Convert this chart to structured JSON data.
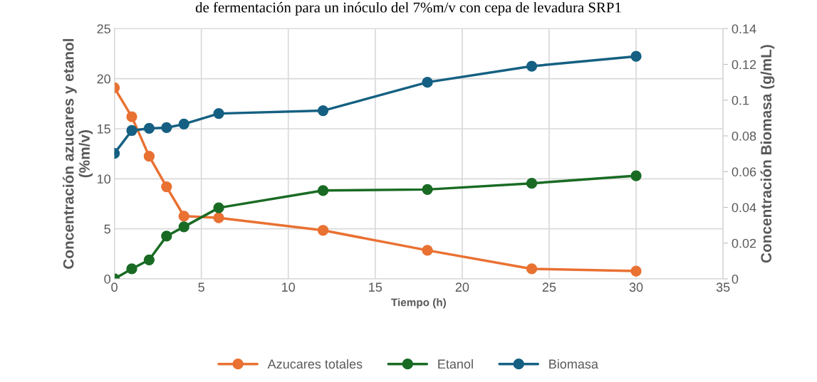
{
  "chart_data": {
    "type": "line",
    "title": "de fermentación para un inóculo del 7%m/v con cepa de levadura SRP1",
    "xlabel": "Tiempo (h)",
    "ylabel": "Concentración azucares y etanol\n(%m/v)",
    "y2label": "Concentración Biomasa (g/mL)",
    "x": [
      0,
      1,
      2,
      3,
      4,
      6,
      12,
      18,
      24,
      30
    ],
    "series": [
      {
        "name": "Azucares totales",
        "color": "#e97132",
        "values": [
          19.1,
          16.2,
          12.25,
          9.2,
          6.27,
          6.1,
          4.85,
          2.85,
          1.0,
          0.78
        ]
      },
      {
        "name": "Etanol",
        "color": "#196b24",
        "values": [
          0,
          1.0,
          1.9,
          4.27,
          5.2,
          7.1,
          8.83,
          8.93,
          9.55,
          10.3
        ]
      },
      {
        "name": "Biomasa",
        "color": "#156082",
        "axis": "y2",
        "values": [
          0.0702,
          0.083,
          0.0842,
          0.0846,
          0.0866,
          0.0925,
          0.0941,
          0.11,
          0.119,
          0.1245
        ]
      }
    ],
    "xlim": [
      0,
      35
    ],
    "xticks": [
      0,
      5,
      10,
      15,
      20,
      25,
      30,
      35
    ],
    "ylim": [
      0,
      25
    ],
    "yticks": [
      0,
      5,
      10,
      15,
      20,
      25
    ],
    "y2lim": [
      0,
      0.14
    ],
    "y2ticks": [
      0,
      0.02,
      0.04,
      0.06,
      0.08,
      0.1,
      0.12,
      0.14
    ],
    "grid": true,
    "legend": "bottom",
    "marker": "circle",
    "line_style": "solid"
  }
}
